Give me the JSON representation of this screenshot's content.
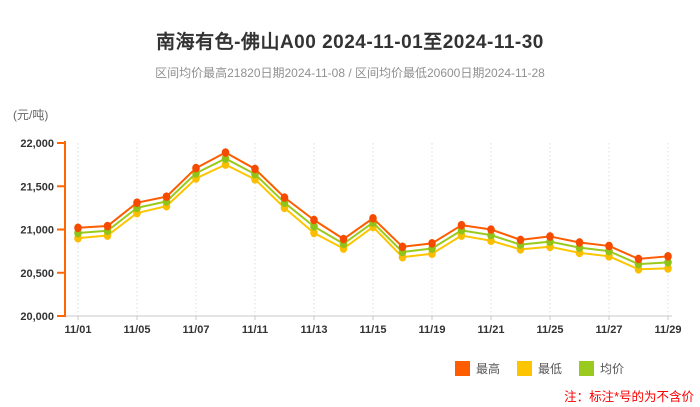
{
  "page": {
    "title": "南海有色-佛山A00 2024-11-01至2024-11-30",
    "subtitle": "区间均价最高21820日期2024-11-08 / 区间均价最低20600日期2024-11-28",
    "unit_label": "(元/吨)",
    "note": "注：标注*号的为不含价",
    "colors": {
      "title": "#333333",
      "subtitle": "#909090",
      "note": "#fe0000"
    }
  },
  "legend": {
    "items": [
      {
        "label": "最高",
        "color": "#fe5c00"
      },
      {
        "label": "最低",
        "color": "#fdc500"
      },
      {
        "label": "均价",
        "color": "#9bca1e"
      }
    ]
  },
  "chart_data": {
    "type": "line",
    "title": "南海有色-佛山A00 2024-11-01至2024-11-30",
    "subtitle": "区间均价最高21820日期2024-11-08 / 区间均价最低20600日期2024-11-28",
    "ylabel": "(元/吨)",
    "xlabel": "",
    "ylim": [
      20000,
      22000
    ],
    "y_ticks": [
      22000,
      21500,
      21000,
      20500,
      20000
    ],
    "y_tick_labels": [
      "22,000",
      "21,500",
      "21,000",
      "20,500",
      "20,000"
    ],
    "x": [
      "11/01",
      "11/04",
      "11/05",
      "11/06",
      "11/07",
      "11/08",
      "11/11",
      "11/12",
      "11/13",
      "11/14",
      "11/15",
      "11/18",
      "11/19",
      "11/20",
      "11/21",
      "11/22",
      "11/25",
      "11/26",
      "11/27",
      "11/28",
      "11/29"
    ],
    "x_tick_indices": [
      0,
      2,
      4,
      6,
      8,
      10,
      12,
      14,
      16,
      18,
      20
    ],
    "x_tick_labels": [
      "11/01",
      "11/05",
      "11/07",
      "11/11",
      "11/13",
      "11/15",
      "11/19",
      "11/21",
      "11/25",
      "11/27",
      "11/29"
    ],
    "grid": "vertical-dotted",
    "legend_position": "bottom-right",
    "annotations": {
      "avg_max": {
        "value": 21820,
        "date": "2024-11-08"
      },
      "avg_min": {
        "value": 20600,
        "date": "2024-11-28"
      }
    },
    "series": [
      {
        "key": "max",
        "name": "最高",
        "color": "#fe5c00",
        "dot_color": "#f64a00",
        "values": [
          21020,
          21040,
          21310,
          21380,
          21710,
          21890,
          21700,
          21370,
          21110,
          20890,
          21130,
          20800,
          20840,
          21050,
          21000,
          20880,
          20920,
          20850,
          20810,
          20660,
          20690
        ]
      },
      {
        "key": "min",
        "name": "最低",
        "color": "#fdc500",
        "dot_color": "#fbbd00",
        "values": [
          20900,
          20930,
          21190,
          21270,
          21590,
          21750,
          21580,
          21250,
          20960,
          20780,
          21030,
          20680,
          20720,
          20930,
          20870,
          20770,
          20800,
          20730,
          20690,
          20540,
          20550
        ]
      },
      {
        "key": "avg",
        "name": "均价",
        "color": "#9bca1e",
        "dot_color": "#90c318",
        "values": [
          20960,
          20985,
          21250,
          21325,
          21650,
          21820,
          21640,
          21310,
          21035,
          20835,
          21080,
          20740,
          20780,
          20990,
          20935,
          20825,
          20860,
          20790,
          20750,
          20600,
          20620
        ]
      }
    ],
    "style": {
      "y_axis_color": "#ff6600",
      "x_axis_color": "#c8c8c8",
      "grid_color": "#dcdcdc",
      "tick_text_color": "#333333"
    }
  }
}
